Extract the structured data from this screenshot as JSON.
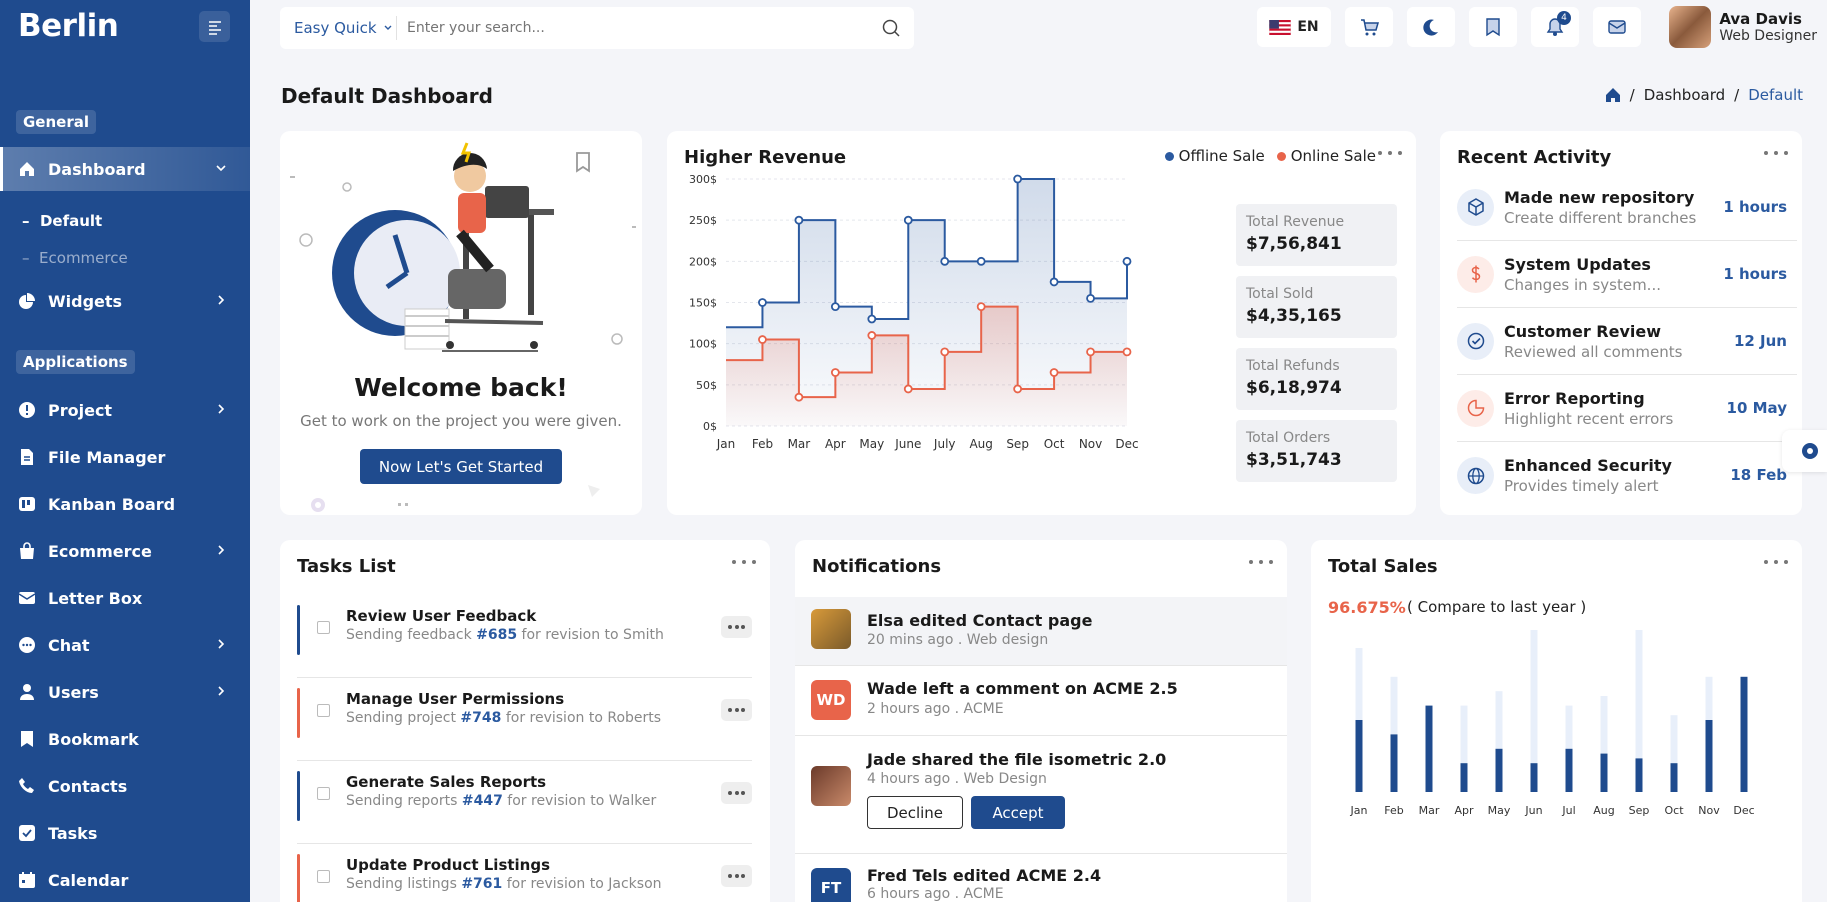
{
  "app": {
    "name": "Berlin"
  },
  "sidebar": {
    "sections": [
      {
        "label": "General"
      },
      {
        "label": "Applications"
      }
    ],
    "items": [
      {
        "label": "Dashboard",
        "icon": "home-icon"
      },
      {
        "label": "Widgets",
        "icon": "pie-chart-icon"
      },
      {
        "label": "Project",
        "icon": "alert-circle-icon"
      },
      {
        "label": "File Manager",
        "icon": "file-icon"
      },
      {
        "label": "Kanban Board",
        "icon": "kanban-icon"
      },
      {
        "label": "Ecommerce",
        "icon": "bag-icon"
      },
      {
        "label": "Letter Box",
        "icon": "mail-icon"
      },
      {
        "label": "Chat",
        "icon": "chat-icon"
      },
      {
        "label": "Users",
        "icon": "user-icon"
      },
      {
        "label": "Bookmark",
        "icon": "bookmark-icon"
      },
      {
        "label": "Contacts",
        "icon": "phone-icon"
      },
      {
        "label": "Tasks",
        "icon": "check-square-icon"
      },
      {
        "label": "Calendar",
        "icon": "calendar-icon"
      }
    ],
    "sub_items": [
      {
        "label": "Default"
      },
      {
        "label": "Ecommerce"
      }
    ]
  },
  "header": {
    "search": {
      "scope": "Easy Quick",
      "placeholder": "Enter your search..."
    },
    "language": "EN",
    "notification_count": "4",
    "user": {
      "name": "Ava Davis",
      "role": "Web Designer"
    }
  },
  "page": {
    "title": "Default Dashboard",
    "breadcrumb": [
      "Dashboard",
      "Default"
    ]
  },
  "welcome": {
    "title": "Welcome back!",
    "description": "Get to work on the project you were given.",
    "button": "Now Let's Get Started"
  },
  "revenue": {
    "title": "Higher Revenue",
    "legend": [
      "Offline Sale",
      "Online Sale"
    ],
    "stats": [
      {
        "label": "Total Revenue",
        "value": "$7,56,841"
      },
      {
        "label": "Total Sold",
        "value": "$4,35,165"
      },
      {
        "label": "Total Refunds",
        "value": "$6,18,974"
      },
      {
        "label": "Total Orders",
        "value": "$3,51,743"
      }
    ]
  },
  "chart_data": [
    {
      "type": "line",
      "title": "Higher Revenue",
      "categories": [
        "Jan",
        "Feb",
        "Mar",
        "Apr",
        "May",
        "June",
        "July",
        "Aug",
        "Sep",
        "Oct",
        "Nov",
        "Dec"
      ],
      "y_ticks": [
        "0$",
        "50$",
        "100$",
        "150$",
        "200$",
        "250$",
        "300$"
      ],
      "ylim": [
        0,
        300
      ],
      "series": [
        {
          "name": "Offline Sale",
          "color": "#2b5aa0",
          "values": [
            120,
            150,
            250,
            145,
            130,
            250,
            200,
            200,
            300,
            175,
            155,
            200
          ]
        },
        {
          "name": "Online Sale",
          "color": "#e8644a",
          "values": [
            80,
            105,
            35,
            65,
            110,
            45,
            90,
            145,
            45,
            65,
            90,
            90
          ]
        }
      ],
      "grid": true,
      "legend_position": "top-right"
    },
    {
      "type": "bar",
      "title": "Total Sales",
      "categories": [
        "Jan",
        "Feb",
        "Mar",
        "Apr",
        "May",
        "Jun",
        "Jul",
        "Aug",
        "Sep",
        "Oct",
        "Nov",
        "Dec"
      ],
      "series": [
        {
          "color": "#1f4b8e",
          "values": [
            75,
            60,
            90,
            30,
            45,
            30,
            45,
            40,
            35,
            30,
            75,
            120
          ]
        },
        {
          "color": "#e8effa",
          "values": [
            150,
            120,
            90,
            90,
            105,
            180,
            90,
            100,
            195,
            80,
            120,
            120
          ]
        }
      ],
      "ylim": [
        0,
        200
      ]
    }
  ],
  "activity": {
    "title": "Recent Activity",
    "items": [
      {
        "title": "Made new repository",
        "desc": "Create different branches",
        "time": "1 hours",
        "icon": "cube-icon"
      },
      {
        "title": "System Updates",
        "desc": "Changes in system...",
        "time": "1 hours",
        "icon": "dollar-icon"
      },
      {
        "title": "Customer Review",
        "desc": "Reviewed all comments",
        "time": "12 Jun",
        "icon": "check-circle-icon"
      },
      {
        "title": "Error Reporting",
        "desc": "Highlight recent errors",
        "time": "10 May",
        "icon": "pie-chart-icon"
      },
      {
        "title": "Enhanced Security",
        "desc": "Provides timely alert",
        "time": "18 Feb",
        "icon": "globe-icon"
      }
    ]
  },
  "tasks": {
    "title": "Tasks List",
    "items": [
      {
        "title": "Review User Feedback",
        "pre": "Sending feedback ",
        "ref": "#685",
        "post": " for revision to Smith",
        "color": "#1f4b8e"
      },
      {
        "title": "Manage User Permissions",
        "pre": "Sending project ",
        "ref": "#748",
        "post": " for revision to Roberts",
        "color": "#e8644a"
      },
      {
        "title": "Generate Sales Reports",
        "pre": "Sending reports ",
        "ref": "#447",
        "post": " for revision to Walker",
        "color": "#1f4b8e"
      },
      {
        "title": "Update Product Listings",
        "pre": "Sending listings ",
        "ref": "#761",
        "post": " for revision to Jackson",
        "color": "#e8644a"
      }
    ]
  },
  "notifications": {
    "title": "Notifications",
    "items": [
      {
        "title": "Elsa edited Contact page",
        "meta": "20 mins ago . Web design"
      },
      {
        "title": "Wade left a comment on ACME 2.5",
        "meta": "2 hours ago . ACME",
        "initials": "WD"
      },
      {
        "title": "Jade shared the file isometric 2.0",
        "meta": "4 hours ago . Web Design"
      },
      {
        "title": "Fred Tels edited ACME 2.4",
        "meta": "6 hours ago . ACME",
        "initials": "FT"
      }
    ],
    "decline": "Decline",
    "accept": "Accept"
  },
  "sales": {
    "title": "Total Sales",
    "percent": "96.675%",
    "compare": "( Compare to last year )"
  }
}
